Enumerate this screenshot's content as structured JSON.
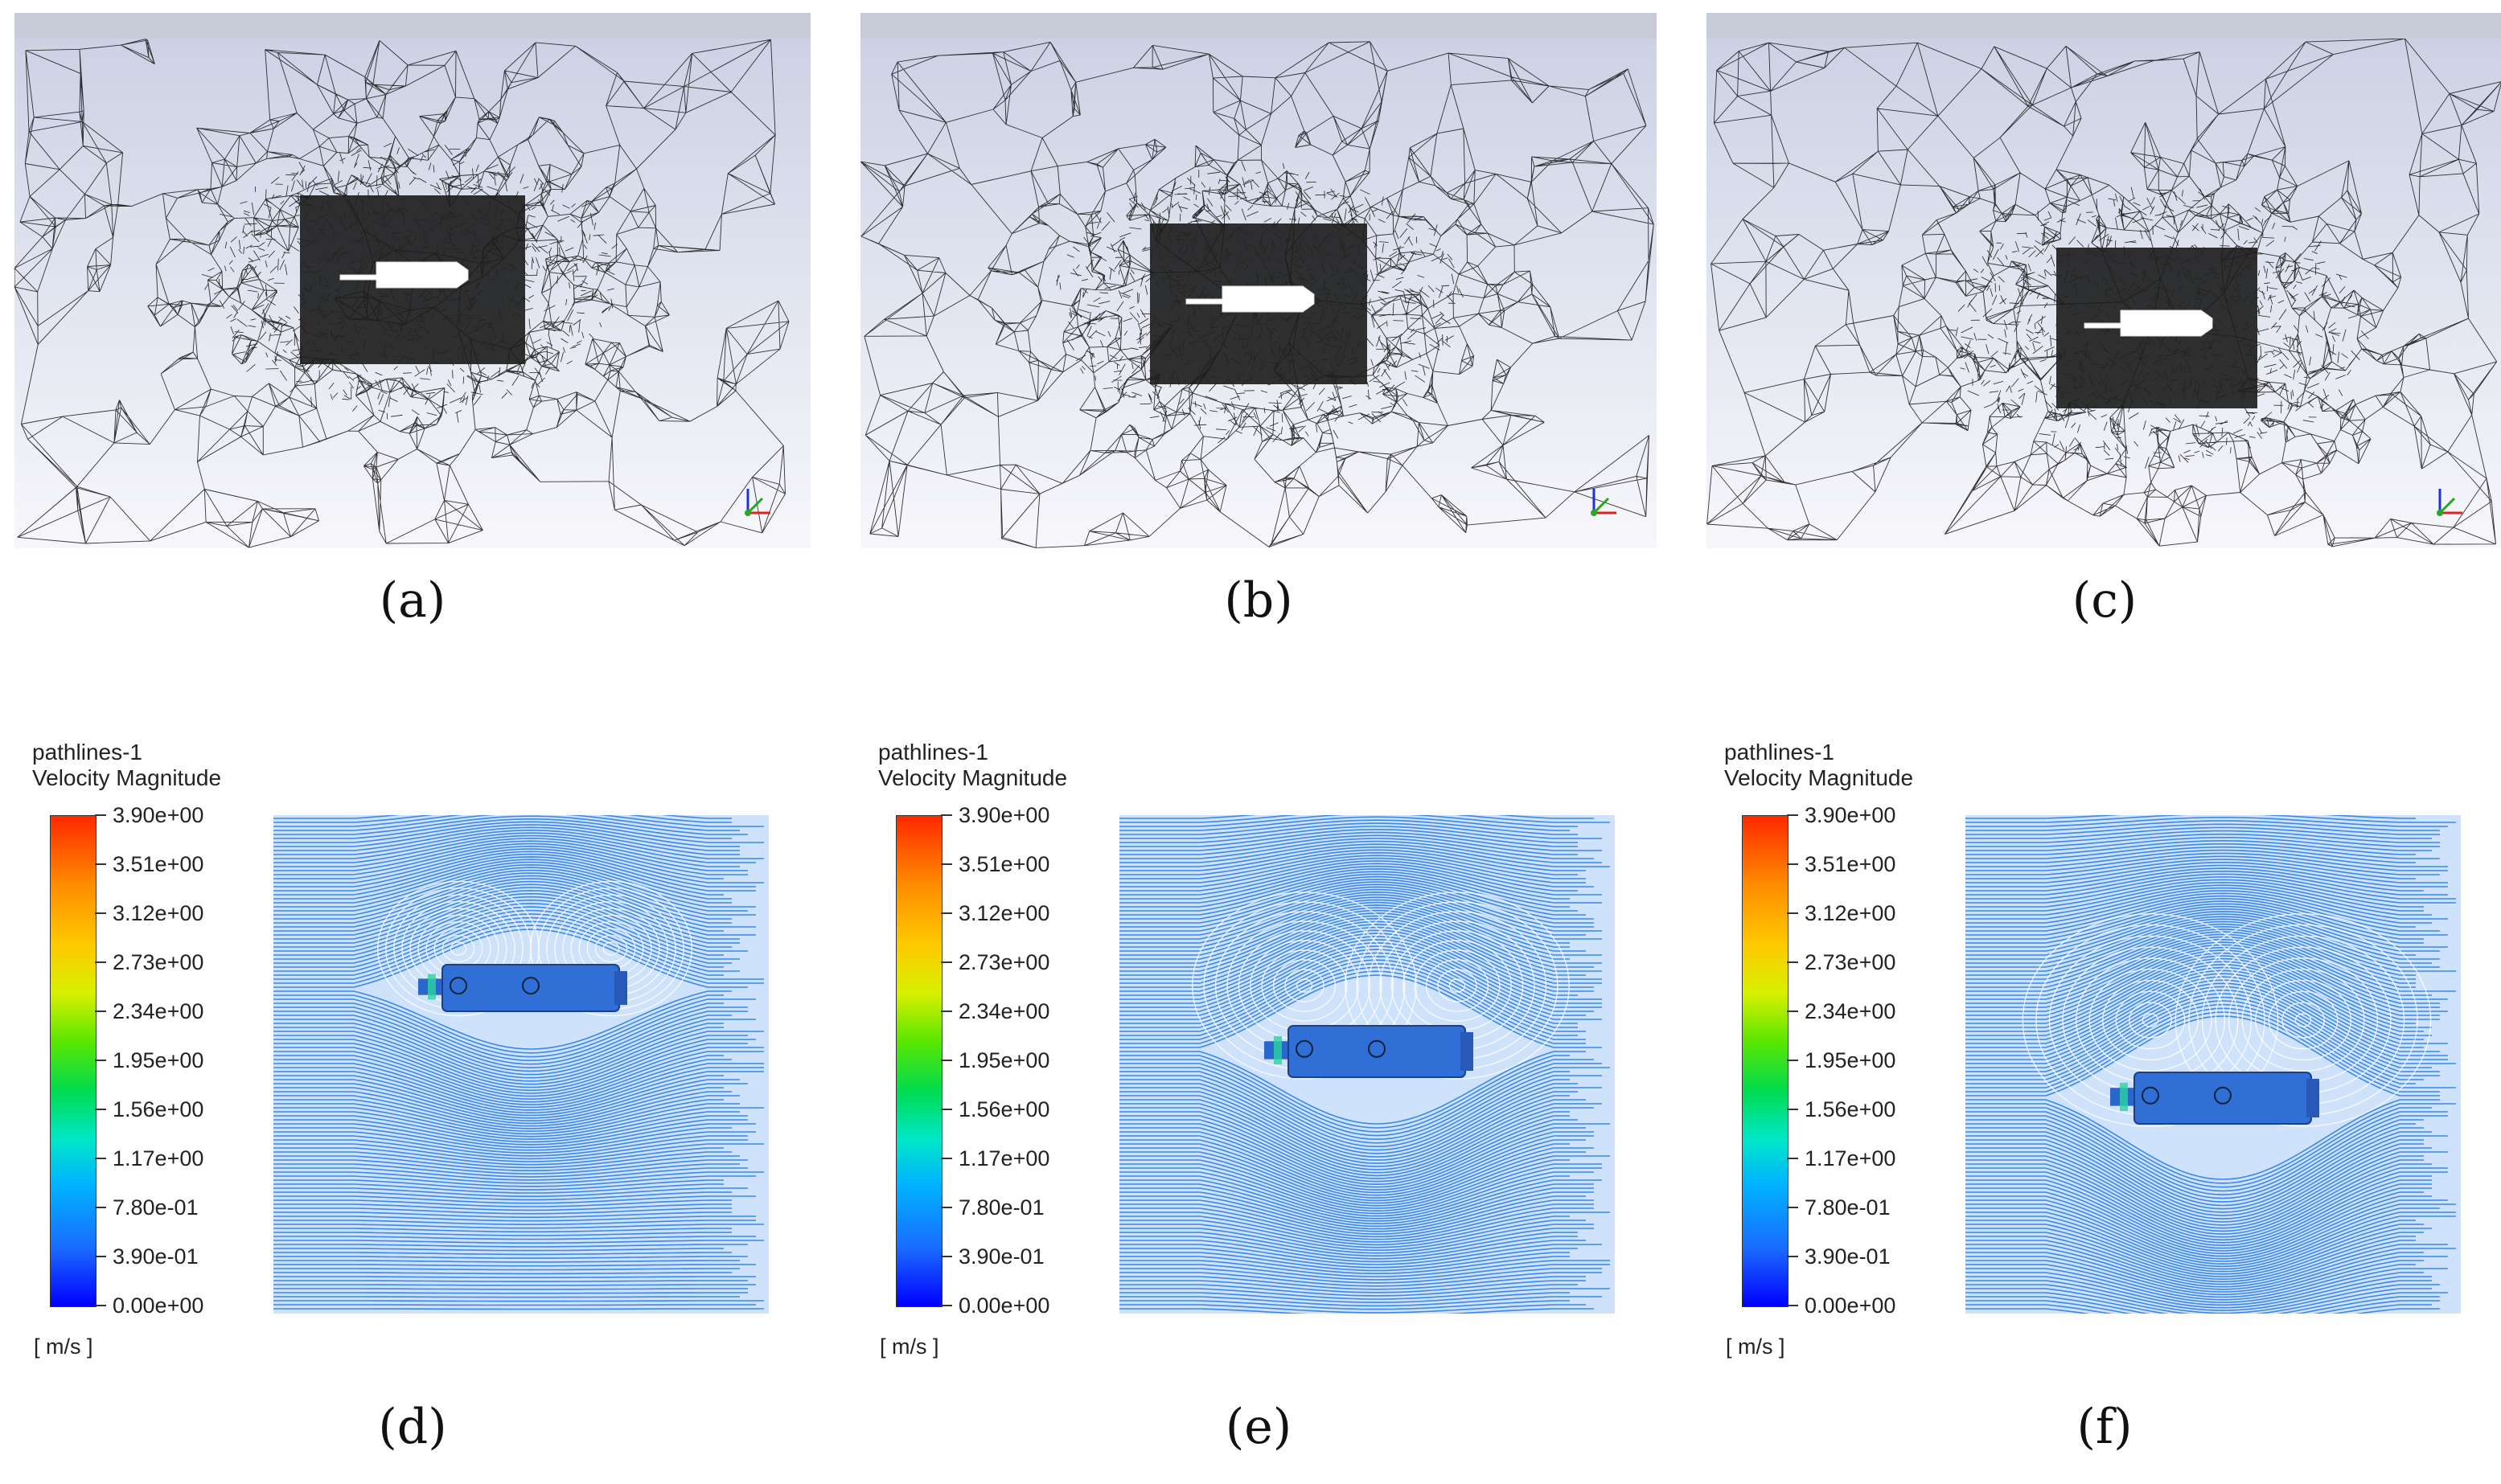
{
  "mesh_panels": [
    {
      "caption": "(a)"
    },
    {
      "caption": "(b)"
    },
    {
      "caption": "(c)"
    }
  ],
  "flow_panels": [
    {
      "caption": "(d)",
      "title": "pathlines-1",
      "subtitle": "Velocity Magnitude",
      "unit": "[ m/s ]"
    },
    {
      "caption": "(e)",
      "title": "pathlines-1",
      "subtitle": "Velocity Magnitude",
      "unit": "[ m/s ]"
    },
    {
      "caption": "(f)",
      "title": "pathlines-1",
      "subtitle": "Velocity Magnitude",
      "unit": "[ m/s ]"
    }
  ],
  "legend_ticks": [
    "3.90e+00",
    "3.51e+00",
    "3.12e+00",
    "2.73e+00",
    "2.34e+00",
    "1.95e+00",
    "1.56e+00",
    "1.17e+00",
    "7.80e-01",
    "3.90e-01",
    "0.00e+00"
  ],
  "colors": {
    "flow_base": "#1e78e6",
    "body": "#2f6fd6",
    "mesh_line": "#111111"
  }
}
